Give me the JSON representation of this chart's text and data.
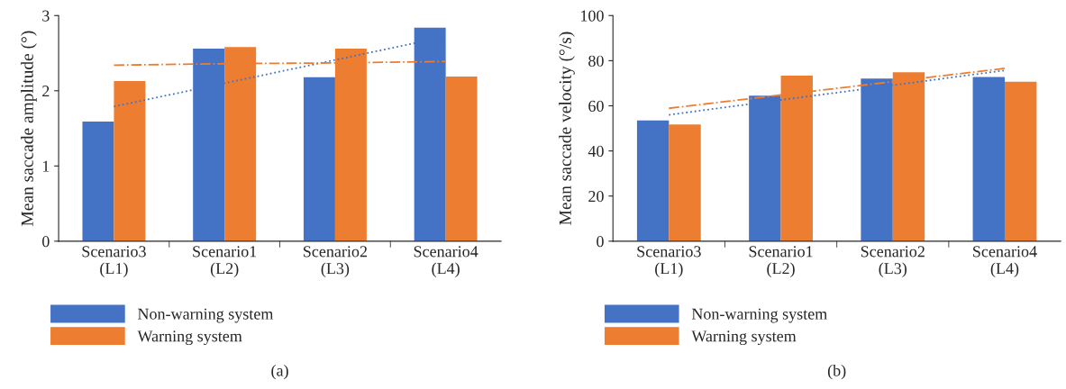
{
  "chart_data": [
    {
      "type": "bar",
      "ylabel": "Mean saccade amplitude (°)",
      "categories": [
        "Scenario3\n(L1)",
        "Scenario1\n(L2)",
        "Scenario2\n(L3)",
        "Scenario4\n(L4)"
      ],
      "ylim": [
        0,
        3
      ],
      "yticks": [
        0,
        1,
        2,
        3
      ],
      "grid": false,
      "legend": "bottom left",
      "annotations": [
        "(a)"
      ],
      "series": [
        {
          "name": "Non-warning system",
          "color": "#4472c4",
          "values": [
            1.59,
            2.56,
            2.18,
            2.84
          ]
        },
        {
          "name": "Warning system",
          "color": "#ed7d31",
          "values": [
            2.13,
            2.58,
            2.56,
            2.19
          ]
        },
        {
          "type": "line",
          "color": "#4472c4",
          "line_style": "dotted",
          "values": [
            1.79,
            2.1,
            2.41,
            2.72
          ]
        },
        {
          "type": "line",
          "color": "#ed7d31",
          "line_style": "dashdot",
          "values": [
            2.34,
            2.36,
            2.37,
            2.39
          ]
        }
      ]
    },
    {
      "type": "bar",
      "ylabel": "Mean saccade velocity (°/s)",
      "categories": [
        "Scenario3\n(L1)",
        "Scenario1\n(L2)",
        "Scenario2\n(L3)",
        "Scenario4\n(L4)"
      ],
      "ylim": [
        0,
        100
      ],
      "yticks": [
        0,
        20,
        40,
        60,
        80,
        100
      ],
      "grid": false,
      "legend": "bottom left",
      "annotations": [
        "(b)"
      ],
      "series": [
        {
          "name": "Non-warning system",
          "color": "#4472c4",
          "values": [
            53.5,
            64.5,
            72.1,
            72.8
          ]
        },
        {
          "name": "Warning system",
          "color": "#ed7d31",
          "values": [
            51.7,
            73.4,
            74.9,
            70.7
          ]
        },
        {
          "type": "line",
          "color": "#4472c4",
          "line_style": "dotted",
          "values": [
            56.0,
            62.6,
            69.1,
            75.7
          ]
        },
        {
          "type": "line",
          "color": "#ed7d31",
          "line_style": "dashdot",
          "values": [
            58.9,
            64.8,
            70.7,
            76.6
          ]
        }
      ]
    }
  ]
}
